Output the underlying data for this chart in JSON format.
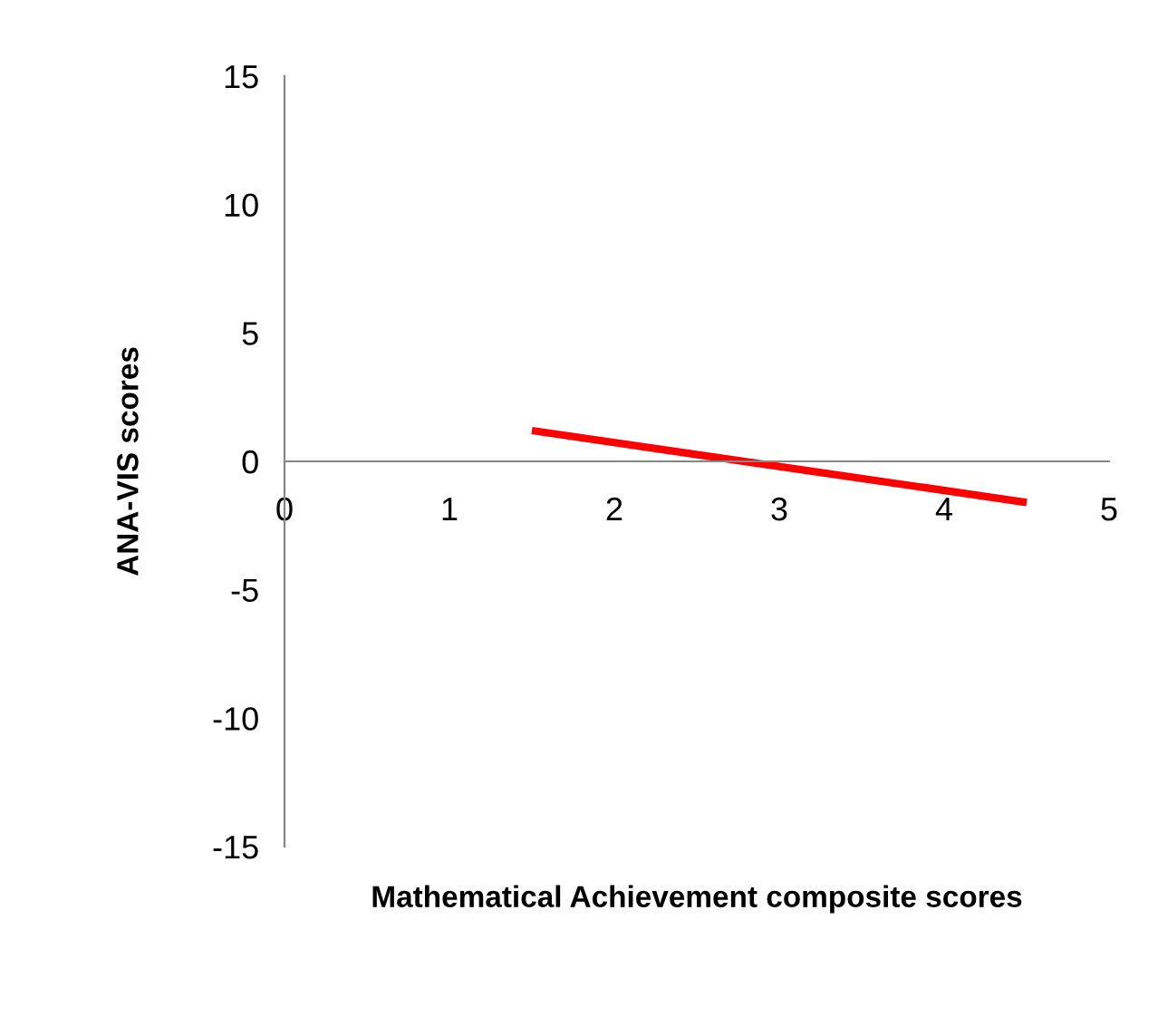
{
  "chart_data": {
    "type": "line",
    "xlabel": "Mathematical Achievement composite scores",
    "ylabel": "ANA-VIS scores",
    "x": [
      1.5,
      4.5
    ],
    "series": [
      {
        "color": "#ff0000",
        "values": [
          1.2,
          -1.6
        ]
      }
    ],
    "xlim": [
      0,
      5
    ],
    "xticks": [
      0,
      1,
      2,
      3,
      4,
      5
    ],
    "ylim": [
      -15,
      15
    ],
    "yticks": [
      -15,
      -10,
      -5,
      0,
      5,
      10,
      15
    ],
    "grid": false,
    "legend": false,
    "marker": "none",
    "line_style": "solid"
  }
}
